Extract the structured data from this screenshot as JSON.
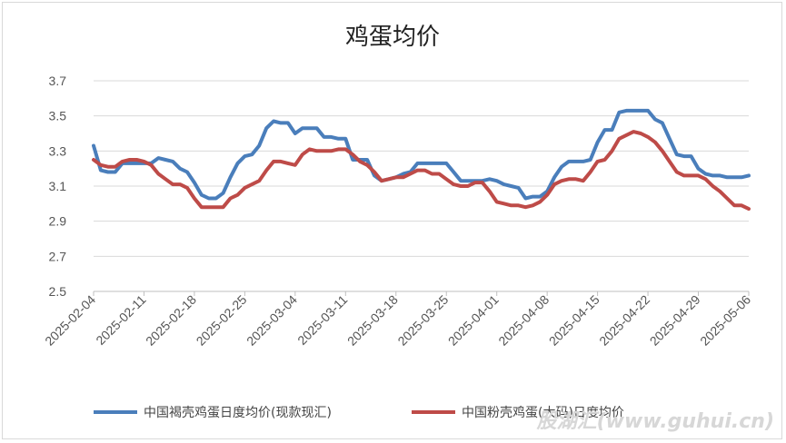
{
  "chart_data": {
    "type": "line",
    "title": "鸡蛋均价",
    "xlabel": "",
    "ylabel": "",
    "ylim": [
      2.5,
      3.7
    ],
    "yticks": [
      "2.5",
      "2.7",
      "2.9",
      "3.1",
      "3.3",
      "3.5",
      "3.7"
    ],
    "grid": "horizontal",
    "legend_position": "bottom",
    "x_start": "2025-02-04",
    "x_end": "2025-05-06",
    "xticks": [
      "2025-02-04",
      "2025-02-11",
      "2025-02-18",
      "2025-02-25",
      "2025-03-04",
      "2025-03-11",
      "2025-03-18",
      "2025-03-25",
      "2025-04-01",
      "2025-04-08",
      "2025-04-15",
      "2025-04-22",
      "2025-04-29",
      "2025-05-06"
    ],
    "series": [
      {
        "name": "中国褐壳鸡蛋日度均价(现款现汇)",
        "color": "#4a7ebb",
        "points": [
          [
            "2025-02-04",
            3.33
          ],
          [
            "2025-02-05",
            3.19
          ],
          [
            "2025-02-06",
            3.18
          ],
          [
            "2025-02-07",
            3.18
          ],
          [
            "2025-02-08",
            3.23
          ],
          [
            "2025-02-09",
            3.23
          ],
          [
            "2025-02-10",
            3.23
          ],
          [
            "2025-02-11",
            3.23
          ],
          [
            "2025-02-12",
            3.23
          ],
          [
            "2025-02-13",
            3.26
          ],
          [
            "2025-02-14",
            3.25
          ],
          [
            "2025-02-15",
            3.24
          ],
          [
            "2025-02-16",
            3.2
          ],
          [
            "2025-02-17",
            3.18
          ],
          [
            "2025-02-18",
            3.12
          ],
          [
            "2025-02-19",
            3.05
          ],
          [
            "2025-02-20",
            3.03
          ],
          [
            "2025-02-21",
            3.03
          ],
          [
            "2025-02-22",
            3.06
          ],
          [
            "2025-02-23",
            3.15
          ],
          [
            "2025-02-24",
            3.23
          ],
          [
            "2025-02-25",
            3.27
          ],
          [
            "2025-02-26",
            3.28
          ],
          [
            "2025-02-27",
            3.33
          ],
          [
            "2025-02-28",
            3.43
          ],
          [
            "2025-03-01",
            3.47
          ],
          [
            "2025-03-02",
            3.46
          ],
          [
            "2025-03-03",
            3.46
          ],
          [
            "2025-03-04",
            3.4
          ],
          [
            "2025-03-05",
            3.43
          ],
          [
            "2025-03-06",
            3.43
          ],
          [
            "2025-03-07",
            3.43
          ],
          [
            "2025-03-08",
            3.38
          ],
          [
            "2025-03-09",
            3.38
          ],
          [
            "2025-03-10",
            3.37
          ],
          [
            "2025-03-11",
            3.37
          ],
          [
            "2025-03-12",
            3.25
          ],
          [
            "2025-03-13",
            3.25
          ],
          [
            "2025-03-14",
            3.25
          ],
          [
            "2025-03-15",
            3.16
          ],
          [
            "2025-03-16",
            3.13
          ],
          [
            "2025-03-17",
            3.14
          ],
          [
            "2025-03-18",
            3.15
          ],
          [
            "2025-03-19",
            3.17
          ],
          [
            "2025-03-20",
            3.18
          ],
          [
            "2025-03-21",
            3.23
          ],
          [
            "2025-03-22",
            3.23
          ],
          [
            "2025-03-23",
            3.23
          ],
          [
            "2025-03-24",
            3.23
          ],
          [
            "2025-03-25",
            3.23
          ],
          [
            "2025-03-26",
            3.18
          ],
          [
            "2025-03-27",
            3.13
          ],
          [
            "2025-03-28",
            3.13
          ],
          [
            "2025-03-29",
            3.13
          ],
          [
            "2025-03-30",
            3.13
          ],
          [
            "2025-03-31",
            3.14
          ],
          [
            "2025-04-01",
            3.13
          ],
          [
            "2025-04-02",
            3.11
          ],
          [
            "2025-04-03",
            3.1
          ],
          [
            "2025-04-04",
            3.09
          ],
          [
            "2025-04-05",
            3.03
          ],
          [
            "2025-04-06",
            3.04
          ],
          [
            "2025-04-07",
            3.04
          ],
          [
            "2025-04-08",
            3.07
          ],
          [
            "2025-04-09",
            3.15
          ],
          [
            "2025-04-10",
            3.21
          ],
          [
            "2025-04-11",
            3.24
          ],
          [
            "2025-04-12",
            3.24
          ],
          [
            "2025-04-13",
            3.24
          ],
          [
            "2025-04-14",
            3.25
          ],
          [
            "2025-04-15",
            3.35
          ],
          [
            "2025-04-16",
            3.42
          ],
          [
            "2025-04-17",
            3.42
          ],
          [
            "2025-04-18",
            3.52
          ],
          [
            "2025-04-19",
            3.53
          ],
          [
            "2025-04-20",
            3.53
          ],
          [
            "2025-04-21",
            3.53
          ],
          [
            "2025-04-22",
            3.53
          ],
          [
            "2025-04-23",
            3.48
          ],
          [
            "2025-04-24",
            3.46
          ],
          [
            "2025-04-25",
            3.37
          ],
          [
            "2025-04-26",
            3.28
          ],
          [
            "2025-04-27",
            3.27
          ],
          [
            "2025-04-28",
            3.27
          ],
          [
            "2025-04-29",
            3.2
          ],
          [
            "2025-04-30",
            3.17
          ],
          [
            "2025-05-01",
            3.16
          ],
          [
            "2025-05-02",
            3.16
          ],
          [
            "2025-05-03",
            3.15
          ],
          [
            "2025-05-04",
            3.15
          ],
          [
            "2025-05-05",
            3.15
          ],
          [
            "2025-05-06",
            3.16
          ]
        ]
      },
      {
        "name": "中国粉壳鸡蛋(大码)日度均价",
        "color": "#be4b48",
        "points": [
          [
            "2025-02-04",
            3.25
          ],
          [
            "2025-02-05",
            3.22
          ],
          [
            "2025-02-06",
            3.21
          ],
          [
            "2025-02-07",
            3.21
          ],
          [
            "2025-02-08",
            3.24
          ],
          [
            "2025-02-09",
            3.25
          ],
          [
            "2025-02-10",
            3.25
          ],
          [
            "2025-02-11",
            3.24
          ],
          [
            "2025-02-12",
            3.22
          ],
          [
            "2025-02-13",
            3.17
          ],
          [
            "2025-02-14",
            3.14
          ],
          [
            "2025-02-15",
            3.11
          ],
          [
            "2025-02-16",
            3.11
          ],
          [
            "2025-02-17",
            3.09
          ],
          [
            "2025-02-18",
            3.03
          ],
          [
            "2025-02-19",
            2.98
          ],
          [
            "2025-02-20",
            2.98
          ],
          [
            "2025-02-21",
            2.98
          ],
          [
            "2025-02-22",
            2.98
          ],
          [
            "2025-02-23",
            3.03
          ],
          [
            "2025-02-24",
            3.05
          ],
          [
            "2025-02-25",
            3.09
          ],
          [
            "2025-02-26",
            3.11
          ],
          [
            "2025-02-27",
            3.13
          ],
          [
            "2025-02-28",
            3.19
          ],
          [
            "2025-03-01",
            3.24
          ],
          [
            "2025-03-02",
            3.24
          ],
          [
            "2025-03-03",
            3.23
          ],
          [
            "2025-03-04",
            3.22
          ],
          [
            "2025-03-05",
            3.28
          ],
          [
            "2025-03-06",
            3.31
          ],
          [
            "2025-03-07",
            3.3
          ],
          [
            "2025-03-08",
            3.3
          ],
          [
            "2025-03-09",
            3.3
          ],
          [
            "2025-03-10",
            3.31
          ],
          [
            "2025-03-11",
            3.31
          ],
          [
            "2025-03-12",
            3.28
          ],
          [
            "2025-03-13",
            3.24
          ],
          [
            "2025-03-14",
            3.22
          ],
          [
            "2025-03-15",
            3.18
          ],
          [
            "2025-03-16",
            3.13
          ],
          [
            "2025-03-17",
            3.14
          ],
          [
            "2025-03-18",
            3.15
          ],
          [
            "2025-03-19",
            3.15
          ],
          [
            "2025-03-20",
            3.17
          ],
          [
            "2025-03-21",
            3.19
          ],
          [
            "2025-03-22",
            3.19
          ],
          [
            "2025-03-23",
            3.17
          ],
          [
            "2025-03-24",
            3.17
          ],
          [
            "2025-03-25",
            3.14
          ],
          [
            "2025-03-26",
            3.11
          ],
          [
            "2025-03-27",
            3.1
          ],
          [
            "2025-03-28",
            3.1
          ],
          [
            "2025-03-29",
            3.12
          ],
          [
            "2025-03-30",
            3.12
          ],
          [
            "2025-03-31",
            3.07
          ],
          [
            "2025-04-01",
            3.01
          ],
          [
            "2025-04-02",
            3.0
          ],
          [
            "2025-04-03",
            2.99
          ],
          [
            "2025-04-04",
            2.99
          ],
          [
            "2025-04-05",
            2.98
          ],
          [
            "2025-04-06",
            2.99
          ],
          [
            "2025-04-07",
            3.01
          ],
          [
            "2025-04-08",
            3.05
          ],
          [
            "2025-04-09",
            3.11
          ],
          [
            "2025-04-10",
            3.13
          ],
          [
            "2025-04-11",
            3.14
          ],
          [
            "2025-04-12",
            3.14
          ],
          [
            "2025-04-13",
            3.13
          ],
          [
            "2025-04-14",
            3.18
          ],
          [
            "2025-04-15",
            3.24
          ],
          [
            "2025-04-16",
            3.25
          ],
          [
            "2025-04-17",
            3.3
          ],
          [
            "2025-04-18",
            3.37
          ],
          [
            "2025-04-19",
            3.39
          ],
          [
            "2025-04-20",
            3.41
          ],
          [
            "2025-04-21",
            3.4
          ],
          [
            "2025-04-22",
            3.38
          ],
          [
            "2025-04-23",
            3.35
          ],
          [
            "2025-04-24",
            3.3
          ],
          [
            "2025-04-25",
            3.24
          ],
          [
            "2025-04-26",
            3.18
          ],
          [
            "2025-04-27",
            3.16
          ],
          [
            "2025-04-28",
            3.16
          ],
          [
            "2025-04-29",
            3.16
          ],
          [
            "2025-04-30",
            3.14
          ],
          [
            "2025-05-01",
            3.1
          ],
          [
            "2025-05-02",
            3.07
          ],
          [
            "2025-05-03",
            3.03
          ],
          [
            "2025-05-04",
            2.99
          ],
          [
            "2025-05-05",
            2.99
          ],
          [
            "2025-05-06",
            2.97
          ]
        ]
      }
    ]
  },
  "watermark": "股湖汇(www.guhui.cn)"
}
